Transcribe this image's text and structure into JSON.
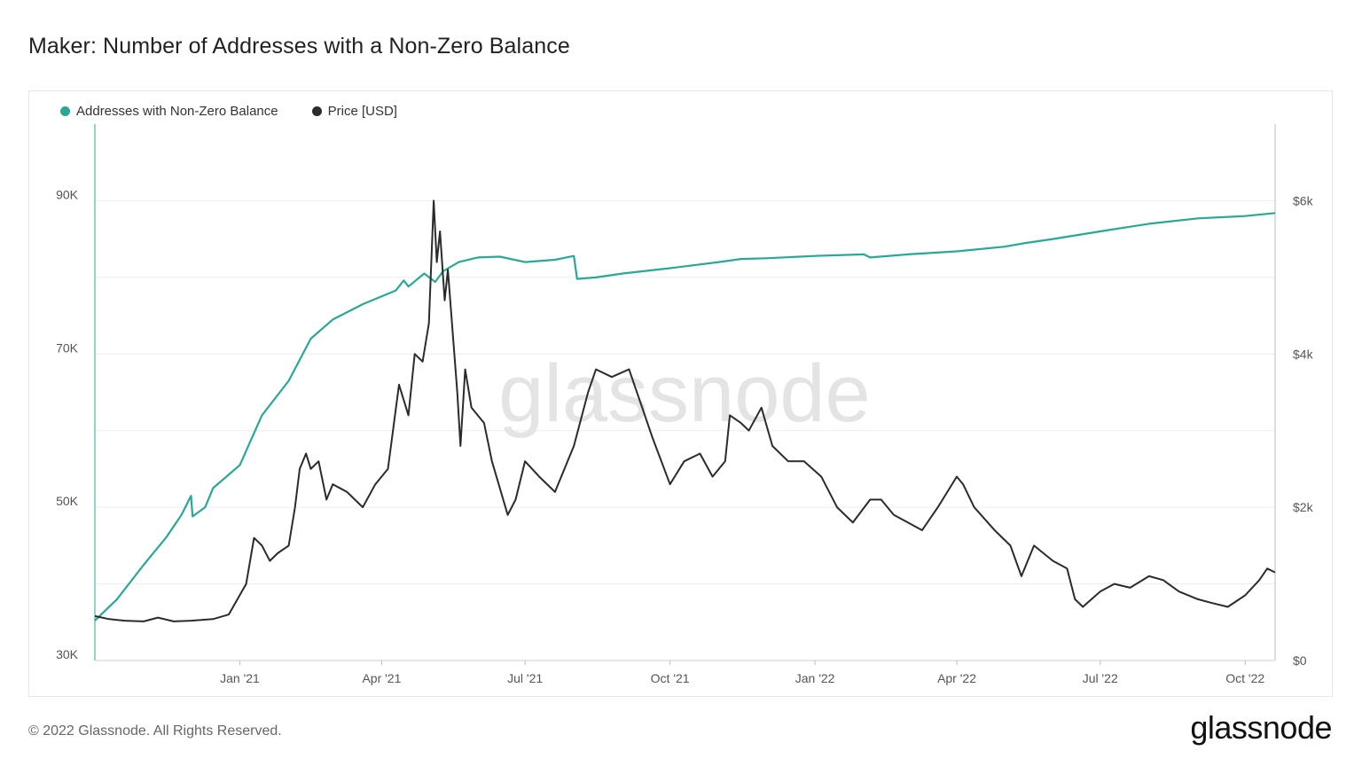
{
  "page": {
    "title": "Maker: Number of Addresses with a Non-Zero Balance",
    "copyright": "© 2022 Glassnode. All Rights Reserved.",
    "logo": "glassnode",
    "watermark": "glassnode"
  },
  "colors": {
    "addresses": "#2aa795",
    "price": "#2b2b2b",
    "grid": "#ececec",
    "axis_text": "#555555"
  },
  "chart_data": {
    "type": "line",
    "title": "Maker: Number of Addresses with a Non-Zero Balance",
    "x_range": [
      "2020-10-01",
      "2022-10-20"
    ],
    "x_ticks": [
      {
        "date": "2021-01-01",
        "label": "Jan '21"
      },
      {
        "date": "2021-04-01",
        "label": "Apr '21"
      },
      {
        "date": "2021-07-01",
        "label": "Jul '21"
      },
      {
        "date": "2021-10-01",
        "label": "Oct '21"
      },
      {
        "date": "2022-01-01",
        "label": "Jan '22"
      },
      {
        "date": "2022-04-01",
        "label": "Apr '22"
      },
      {
        "date": "2022-07-01",
        "label": "Jul '22"
      },
      {
        "date": "2022-10-01",
        "label": "Oct '22"
      }
    ],
    "y_left": {
      "min": 30000,
      "max": 100000,
      "ticks": [
        30000,
        50000,
        70000,
        90000
      ],
      "tick_labels": [
        "30K",
        "50K",
        "70K",
        "90K"
      ]
    },
    "y_right": {
      "min": 0,
      "max": 7000,
      "ticks": [
        0,
        2000,
        4000,
        6000
      ],
      "tick_labels": [
        "$0",
        "$2k",
        "$4k",
        "$6k"
      ]
    },
    "legend_position": "top-left",
    "grid": true,
    "series": [
      {
        "name": "Addresses with Non-Zero Balance",
        "axis": "left",
        "points": [
          [
            "2020-10-01",
            35200
          ],
          [
            "2020-10-15",
            38000
          ],
          [
            "2020-11-01",
            42500
          ],
          [
            "2020-11-15",
            46000
          ],
          [
            "2020-11-25",
            49000
          ],
          [
            "2020-12-01",
            51500
          ],
          [
            "2020-12-02",
            48800
          ],
          [
            "2020-12-10",
            50000
          ],
          [
            "2020-12-15",
            52500
          ],
          [
            "2021-01-01",
            55500
          ],
          [
            "2021-01-15",
            62000
          ],
          [
            "2021-02-01",
            66500
          ],
          [
            "2021-02-15",
            72000
          ],
          [
            "2021-03-01",
            74500
          ],
          [
            "2021-03-20",
            76500
          ],
          [
            "2021-04-10",
            78300
          ],
          [
            "2021-04-15",
            79600
          ],
          [
            "2021-04-18",
            78800
          ],
          [
            "2021-04-28",
            80500
          ],
          [
            "2021-05-05",
            79400
          ],
          [
            "2021-05-10",
            80800
          ],
          [
            "2021-05-20",
            82000
          ],
          [
            "2021-06-01",
            82600
          ],
          [
            "2021-06-15",
            82700
          ],
          [
            "2021-07-01",
            82000
          ],
          [
            "2021-07-20",
            82300
          ],
          [
            "2021-08-01",
            82800
          ],
          [
            "2021-08-03",
            79800
          ],
          [
            "2021-08-15",
            80000
          ],
          [
            "2021-09-01",
            80500
          ],
          [
            "2021-10-01",
            81200
          ],
          [
            "2021-11-01",
            82000
          ],
          [
            "2021-11-15",
            82400
          ],
          [
            "2021-12-01",
            82500
          ],
          [
            "2022-01-01",
            82800
          ],
          [
            "2022-02-01",
            83000
          ],
          [
            "2022-02-05",
            82600
          ],
          [
            "2022-03-01",
            83000
          ],
          [
            "2022-04-01",
            83400
          ],
          [
            "2022-05-01",
            84000
          ],
          [
            "2022-05-15",
            84500
          ],
          [
            "2022-06-01",
            85000
          ],
          [
            "2022-07-01",
            86000
          ],
          [
            "2022-08-01",
            87000
          ],
          [
            "2022-09-01",
            87700
          ],
          [
            "2022-10-01",
            88000
          ],
          [
            "2022-10-20",
            88400
          ]
        ]
      },
      {
        "name": "Price [USD]",
        "axis": "right",
        "points": [
          [
            "2020-10-01",
            580
          ],
          [
            "2020-10-10",
            540
          ],
          [
            "2020-10-20",
            520
          ],
          [
            "2020-11-01",
            510
          ],
          [
            "2020-11-10",
            560
          ],
          [
            "2020-11-20",
            510
          ],
          [
            "2020-12-01",
            520
          ],
          [
            "2020-12-15",
            540
          ],
          [
            "2020-12-25",
            600
          ],
          [
            "2021-01-05",
            1000
          ],
          [
            "2021-01-10",
            1600
          ],
          [
            "2021-01-15",
            1500
          ],
          [
            "2021-01-20",
            1300
          ],
          [
            "2021-01-25",
            1400
          ],
          [
            "2021-02-01",
            1500
          ],
          [
            "2021-02-05",
            2000
          ],
          [
            "2021-02-08",
            2500
          ],
          [
            "2021-02-12",
            2700
          ],
          [
            "2021-02-15",
            2500
          ],
          [
            "2021-02-20",
            2600
          ],
          [
            "2021-02-25",
            2100
          ],
          [
            "2021-03-01",
            2300
          ],
          [
            "2021-03-10",
            2200
          ],
          [
            "2021-03-20",
            2000
          ],
          [
            "2021-03-28",
            2300
          ],
          [
            "2021-04-05",
            2500
          ],
          [
            "2021-04-12",
            3600
          ],
          [
            "2021-04-18",
            3200
          ],
          [
            "2021-04-22",
            4000
          ],
          [
            "2021-04-27",
            3900
          ],
          [
            "2021-05-01",
            4400
          ],
          [
            "2021-05-04",
            6000
          ],
          [
            "2021-05-06",
            5200
          ],
          [
            "2021-05-08",
            5600
          ],
          [
            "2021-05-11",
            4700
          ],
          [
            "2021-05-13",
            5100
          ],
          [
            "2021-05-16",
            4300
          ],
          [
            "2021-05-19",
            3500
          ],
          [
            "2021-05-21",
            2800
          ],
          [
            "2021-05-24",
            3800
          ],
          [
            "2021-05-28",
            3300
          ],
          [
            "2021-06-05",
            3100
          ],
          [
            "2021-06-10",
            2600
          ],
          [
            "2021-06-20",
            1900
          ],
          [
            "2021-06-25",
            2100
          ],
          [
            "2021-07-01",
            2600
          ],
          [
            "2021-07-10",
            2400
          ],
          [
            "2021-07-20",
            2200
          ],
          [
            "2021-07-28",
            2600
          ],
          [
            "2021-08-01",
            2800
          ],
          [
            "2021-08-10",
            3500
          ],
          [
            "2021-08-15",
            3800
          ],
          [
            "2021-08-25",
            3700
          ],
          [
            "2021-09-05",
            3800
          ],
          [
            "2021-09-15",
            3200
          ],
          [
            "2021-09-20",
            2900
          ],
          [
            "2021-10-01",
            2300
          ],
          [
            "2021-10-10",
            2600
          ],
          [
            "2021-10-20",
            2700
          ],
          [
            "2021-10-28",
            2400
          ],
          [
            "2021-11-05",
            2600
          ],
          [
            "2021-11-08",
            3200
          ],
          [
            "2021-11-15",
            3100
          ],
          [
            "2021-11-20",
            3000
          ],
          [
            "2021-11-28",
            3300
          ],
          [
            "2021-12-05",
            2800
          ],
          [
            "2021-12-15",
            2600
          ],
          [
            "2021-12-25",
            2600
          ],
          [
            "2022-01-05",
            2400
          ],
          [
            "2022-01-15",
            2000
          ],
          [
            "2022-01-25",
            1800
          ],
          [
            "2022-02-05",
            2100
          ],
          [
            "2022-02-12",
            2100
          ],
          [
            "2022-02-20",
            1900
          ],
          [
            "2022-03-01",
            1800
          ],
          [
            "2022-03-10",
            1700
          ],
          [
            "2022-03-20",
            2000
          ],
          [
            "2022-04-01",
            2400
          ],
          [
            "2022-04-05",
            2300
          ],
          [
            "2022-04-12",
            2000
          ],
          [
            "2022-04-25",
            1700
          ],
          [
            "2022-05-05",
            1500
          ],
          [
            "2022-05-12",
            1100
          ],
          [
            "2022-05-20",
            1500
          ],
          [
            "2022-06-01",
            1300
          ],
          [
            "2022-06-10",
            1200
          ],
          [
            "2022-06-15",
            800
          ],
          [
            "2022-06-20",
            700
          ],
          [
            "2022-07-01",
            900
          ],
          [
            "2022-07-10",
            1000
          ],
          [
            "2022-07-20",
            950
          ],
          [
            "2022-08-01",
            1100
          ],
          [
            "2022-08-10",
            1050
          ],
          [
            "2022-08-20",
            900
          ],
          [
            "2022-09-01",
            800
          ],
          [
            "2022-09-10",
            750
          ],
          [
            "2022-09-20",
            700
          ],
          [
            "2022-10-01",
            850
          ],
          [
            "2022-10-10",
            1050
          ],
          [
            "2022-10-15",
            1200
          ],
          [
            "2022-10-20",
            1150
          ]
        ]
      }
    ]
  }
}
